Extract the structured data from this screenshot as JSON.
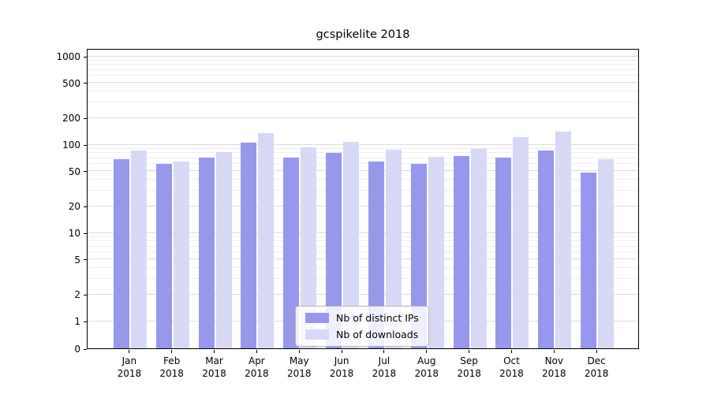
{
  "chart_data": {
    "type": "bar",
    "title": "gcspikelite 2018",
    "scale": "symlog",
    "grid": true,
    "legend_position": "lower center",
    "categories": [
      "Jan",
      "Feb",
      "Mar",
      "Apr",
      "May",
      "Jun",
      "Jul",
      "Aug",
      "Sep",
      "Oct",
      "Nov",
      "Dec"
    ],
    "year_label": "2018",
    "yticks": [
      0,
      1,
      2,
      5,
      10,
      20,
      50,
      100,
      200,
      500,
      1000
    ],
    "ylim": [
      0,
      1200
    ],
    "xlabel": "",
    "ylabel": "",
    "series": [
      {
        "name": "Nb of distinct IPs",
        "color": "#9797ec",
        "values": [
          68,
          60,
          70,
          104,
          71,
          80,
          63,
          60,
          73,
          70,
          84,
          48
        ]
      },
      {
        "name": "Nb of downloads",
        "color": "#d8d8f7",
        "values": [
          84,
          64,
          81,
          133,
          92,
          107,
          86,
          72,
          88,
          120,
          140,
          68
        ]
      }
    ]
  }
}
